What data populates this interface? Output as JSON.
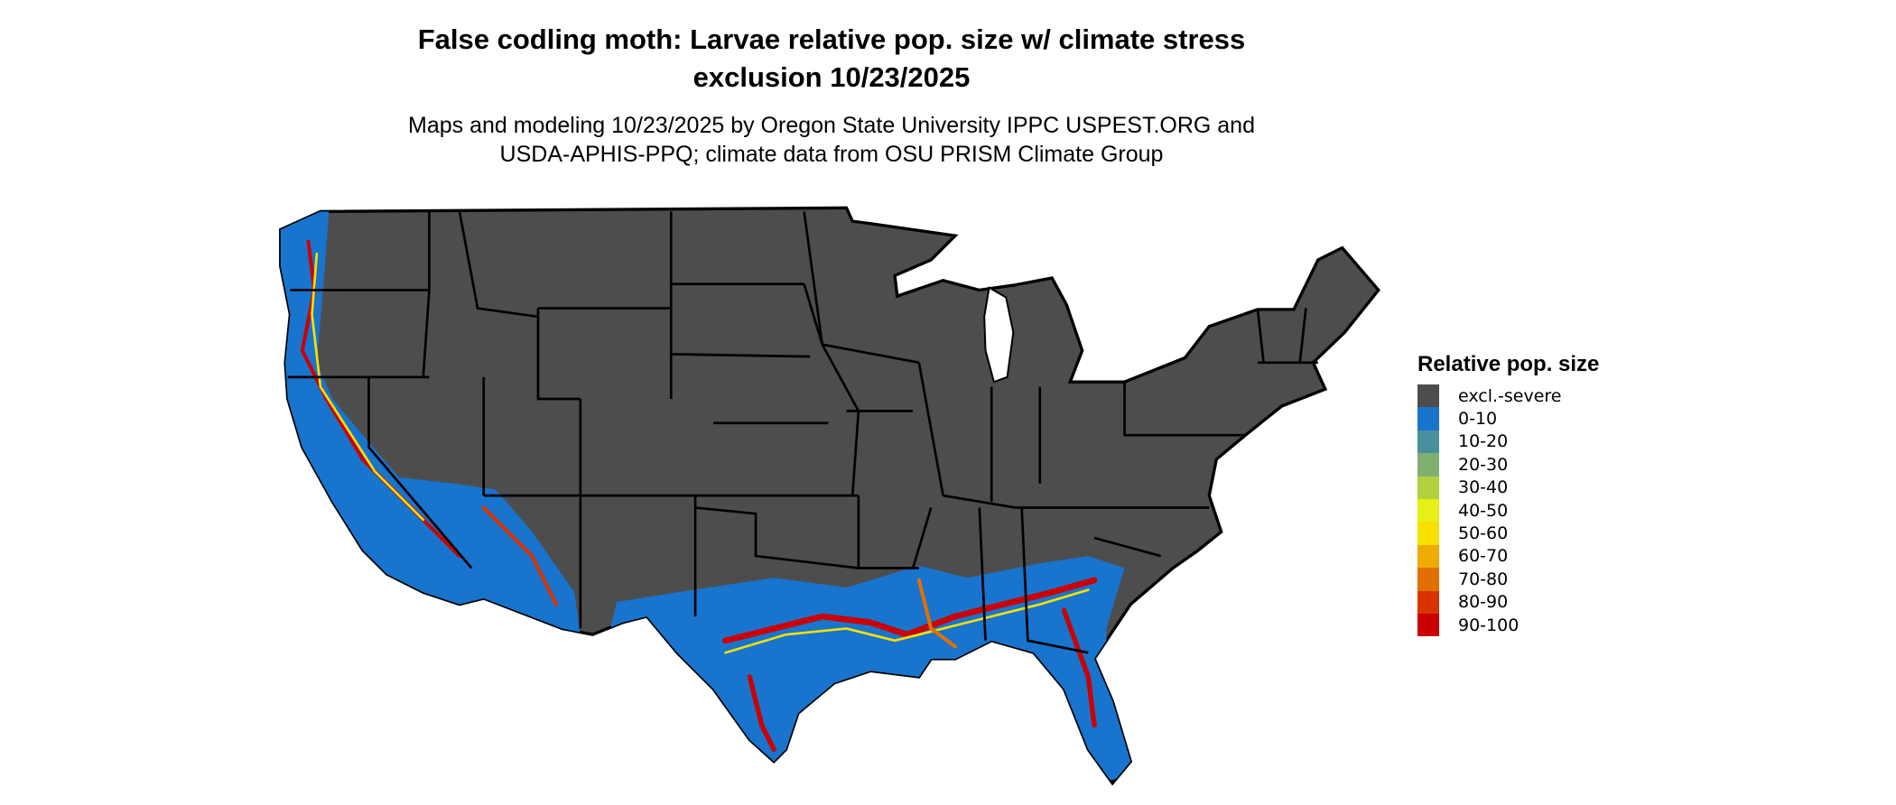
{
  "title": {
    "line1": "False codling moth: Larvae relative pop. size w/ climate stress",
    "line2": "exclusion 10/23/2025"
  },
  "subtitle": {
    "line1": "Maps and modeling 10/23/2025 by Oregon State University IPPC USPEST.ORG and",
    "line2": "USDA-APHIS-PPQ; climate data from OSU PRISM Climate Group"
  },
  "legend": {
    "title": "Relative pop. size",
    "items": [
      {
        "label": "excl.-severe",
        "color": "#4d4d4d"
      },
      {
        "label": "0-10",
        "color": "#1874cd"
      },
      {
        "label": "10-20",
        "color": "#4a8f9c"
      },
      {
        "label": "20-30",
        "color": "#7fb070"
      },
      {
        "label": "30-40",
        "color": "#b2d13f"
      },
      {
        "label": "40-50",
        "color": "#e6f017"
      },
      {
        "label": "50-60",
        "color": "#f7e000"
      },
      {
        "label": "60-70",
        "color": "#eeab00"
      },
      {
        "label": "70-80",
        "color": "#e27000"
      },
      {
        "label": "80-90",
        "color": "#d93400"
      },
      {
        "label": "90-100",
        "color": "#cc0000"
      }
    ]
  },
  "map": {
    "region": "Contiguous United States",
    "excluded_color": "#4d4d4d",
    "border_color": "#000000"
  }
}
